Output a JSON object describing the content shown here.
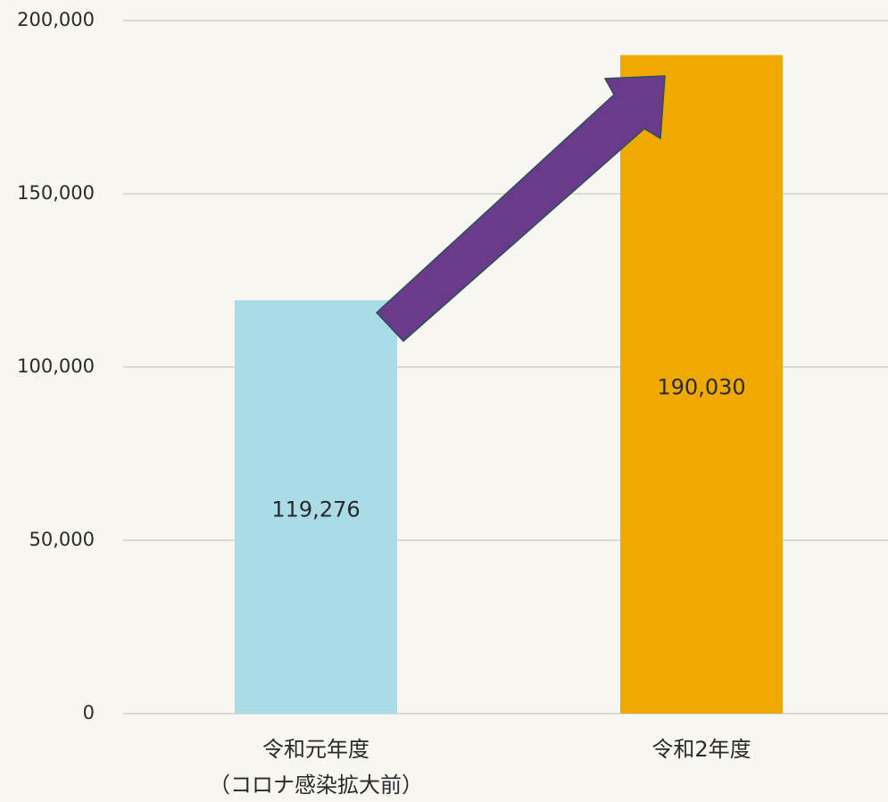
{
  "chart_data": {
    "type": "bar",
    "categories": [
      [
        "令和元年度",
        "（コロナ感染拡大前）"
      ],
      [
        "令和2年度"
      ]
    ],
    "values": [
      119276,
      190030
    ],
    "value_labels": [
      "119,276",
      "190,030"
    ],
    "colors": [
      "#a9dce6",
      "#f0a900"
    ],
    "ylim": [
      0,
      200000
    ],
    "yticks": [
      0,
      {
        "value": 50000,
        "label": "50,000"
      },
      {
        "value": 100000,
        "label": "100,000"
      },
      {
        "value": 150000,
        "label": "150,000"
      },
      {
        "value": 200000,
        "label": "200,000"
      }
    ],
    "grid": true
  }
}
